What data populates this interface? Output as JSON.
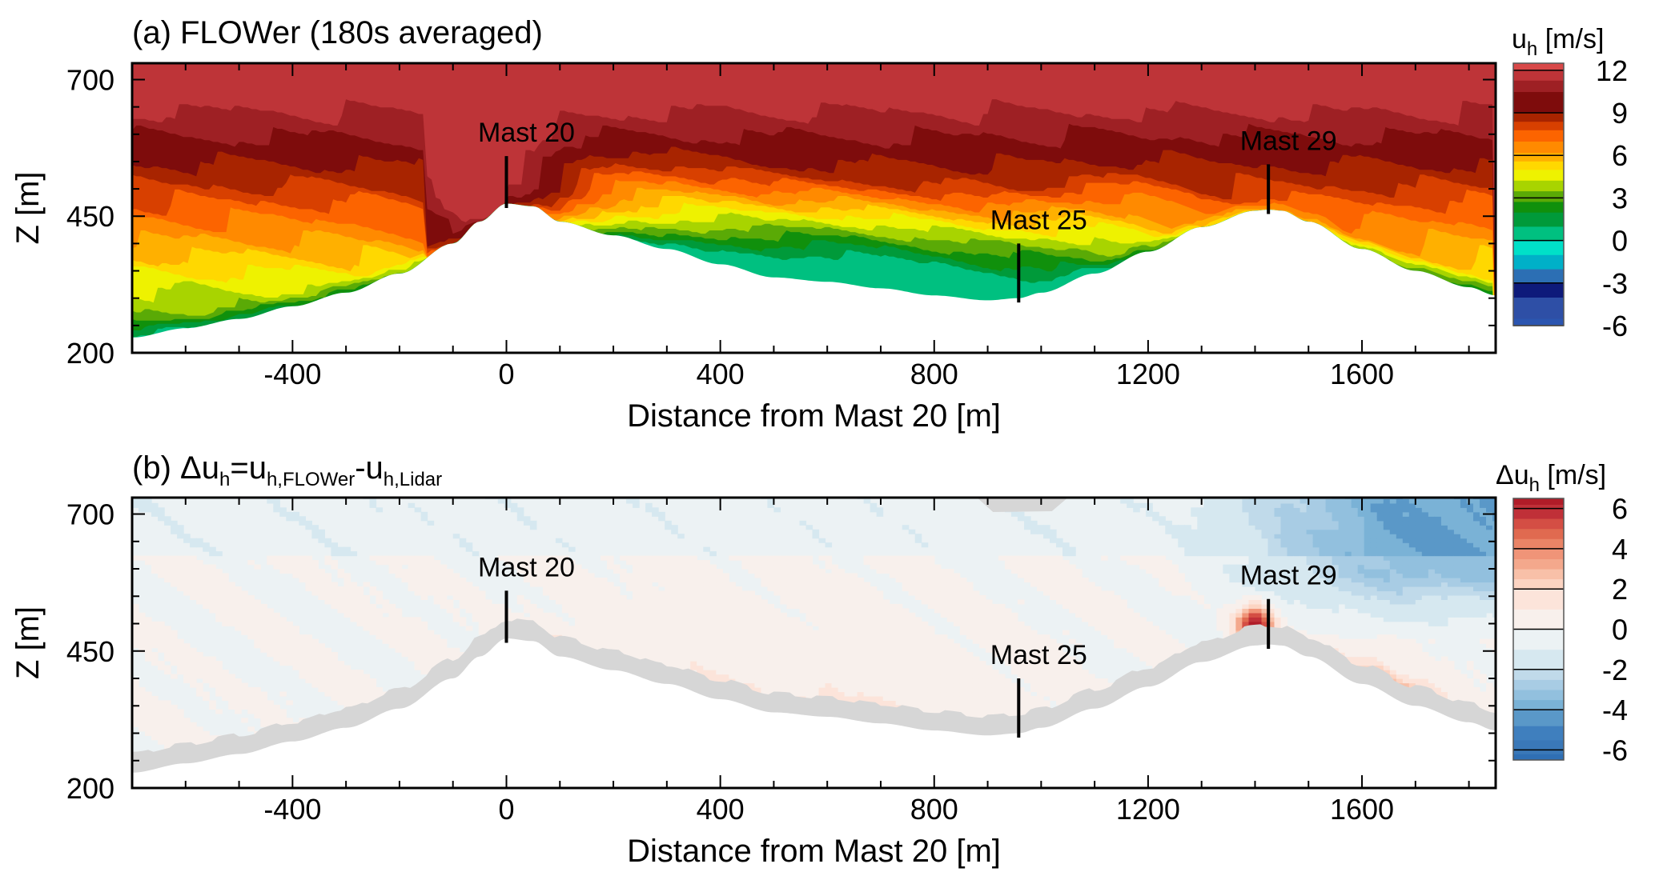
{
  "figure": {
    "panels": [
      {
        "id": "a",
        "title_parts": [
          {
            "text": "(a) FLOWer (180s averaged)",
            "sub": false
          }
        ],
        "colorbar": {
          "label_main": "u",
          "label_sub": "h",
          "label_unit": " [m/s]",
          "range": [
            -6,
            12.5
          ],
          "ticks": [
            "12",
            "9",
            "6",
            "3",
            "0",
            "-3",
            "-6"
          ],
          "tick_values": [
            12,
            9,
            6,
            3,
            0,
            -3,
            -6
          ],
          "levels": [
            {
              "from": -6.0,
              "to": -5.5,
              "color": "#2b55b0"
            },
            {
              "from": -5.5,
              "to": -4.0,
              "color": "#2e4fa6"
            },
            {
              "from": -4.0,
              "to": -3.0,
              "color": "#0e1a7a"
            },
            {
              "from": -3.0,
              "to": -2.0,
              "color": "#2c6fb4"
            },
            {
              "from": -2.0,
              "to": -1.0,
              "color": "#00b0c8"
            },
            {
              "from": -1.0,
              "to": 0.0,
              "color": "#00e0c8"
            },
            {
              "from": 0.0,
              "to": 1.0,
              "color": "#00c080"
            },
            {
              "from": 1.0,
              "to": 2.0,
              "color": "#009a3a"
            },
            {
              "from": 2.0,
              "to": 2.75,
              "color": "#10900c"
            },
            {
              "from": 2.75,
              "to": 3.5,
              "color": "#5aaa06"
            },
            {
              "from": 3.5,
              "to": 4.25,
              "color": "#a8d400"
            },
            {
              "from": 4.25,
              "to": 5.0,
              "color": "#eef200"
            },
            {
              "from": 5.0,
              "to": 5.6,
              "color": "#ffd800"
            },
            {
              "from": 5.6,
              "to": 6.2,
              "color": "#ffb000"
            },
            {
              "from": 6.2,
              "to": 7.0,
              "color": "#ff8a00"
            },
            {
              "from": 7.0,
              "to": 7.8,
              "color": "#fc6400"
            },
            {
              "from": 7.8,
              "to": 8.4,
              "color": "#d84000"
            },
            {
              "from": 8.4,
              "to": 9.0,
              "color": "#a82400"
            },
            {
              "from": 9.0,
              "to": 10.5,
              "color": "#7e0c0c"
            },
            {
              "from": 10.5,
              "to": 11.3,
              "color": "#9e2024"
            },
            {
              "from": 11.3,
              "to": 12.0,
              "color": "#be3438"
            },
            {
              "from": 12.0,
              "to": 12.5,
              "color": "#d84848"
            }
          ]
        },
        "field_bands": [
          {
            "value": 0.5,
            "color": "#00c080"
          },
          {
            "value": 1.5,
            "color": "#009a3a"
          },
          {
            "value": 2.4,
            "color": "#10900c"
          },
          {
            "value": 3.1,
            "color": "#5aaa06"
          },
          {
            "value": 3.9,
            "color": "#a8d400"
          },
          {
            "value": 4.6,
            "color": "#eef200"
          },
          {
            "value": 5.3,
            "color": "#ffd800"
          },
          {
            "value": 5.9,
            "color": "#ffb000"
          },
          {
            "value": 6.6,
            "color": "#ff8a00"
          },
          {
            "value": 7.4,
            "color": "#fc6400"
          },
          {
            "value": 8.1,
            "color": "#d84000"
          },
          {
            "value": 8.7,
            "color": "#a82400"
          },
          {
            "value": 9.8,
            "color": "#7e0c0c"
          },
          {
            "value": 10.9,
            "color": "#9e2024"
          },
          {
            "value": 11.7,
            "color": "#be3438"
          }
        ],
        "terrain_fill": "#ffffff",
        "terrain_gap_fill": null
      },
      {
        "id": "b",
        "title_parts": [
          {
            "text": "(b) Δu",
            "sub": false
          },
          {
            "text": "h",
            "sub": true
          },
          {
            "text": "=u",
            "sub": false
          },
          {
            "text": "h,FLOWer",
            "sub": true
          },
          {
            "text": "-u",
            "sub": false
          },
          {
            "text": "h,Lidar",
            "sub": true
          }
        ],
        "colorbar": {
          "label_main": "Δu",
          "label_sub": "h",
          "label_unit": " [m/s]",
          "range": [
            -6.5,
            6.5
          ],
          "ticks": [
            "6",
            "4",
            "2",
            "0",
            "-2",
            "-4",
            "-6"
          ],
          "tick_values": [
            6,
            4,
            2,
            0,
            -2,
            -4,
            -6
          ],
          "levels": [
            {
              "from": -6.5,
              "to": -6.2,
              "color": "#2f6fb4"
            },
            {
              "from": -6.2,
              "to": -5.5,
              "color": "#3a78b8"
            },
            {
              "from": -5.5,
              "to": -4.8,
              "color": "#3f7fbe"
            },
            {
              "from": -4.8,
              "to": -4.0,
              "color": "#5a98c8"
            },
            {
              "from": -4.0,
              "to": -3.5,
              "color": "#7ab2d6"
            },
            {
              "from": -3.5,
              "to": -3.0,
              "color": "#92c0de"
            },
            {
              "from": -3.0,
              "to": -2.5,
              "color": "#a8cce4"
            },
            {
              "from": -2.5,
              "to": -2.0,
              "color": "#c0daea"
            },
            {
              "from": -2.0,
              "to": -1.0,
              "color": "#d6e8f0"
            },
            {
              "from": -1.0,
              "to": 0.0,
              "color": "#ecf2f4"
            },
            {
              "from": 0.0,
              "to": 1.0,
              "color": "#f8f0ec"
            },
            {
              "from": 1.0,
              "to": 2.0,
              "color": "#fce4da"
            },
            {
              "from": 2.0,
              "to": 2.5,
              "color": "#fcd4c2"
            },
            {
              "from": 2.5,
              "to": 3.0,
              "color": "#f8c0a8"
            },
            {
              "from": 3.0,
              "to": 3.5,
              "color": "#f4a88c"
            },
            {
              "from": 3.5,
              "to": 4.0,
              "color": "#f09478"
            },
            {
              "from": 4.0,
              "to": 4.5,
              "color": "#ea8466"
            },
            {
              "from": 4.5,
              "to": 5.0,
              "color": "#e06a50"
            },
            {
              "from": 5.0,
              "to": 5.5,
              "color": "#d44e44"
            },
            {
              "from": 5.5,
              "to": 6.2,
              "color": "#c03038"
            },
            {
              "from": 6.2,
              "to": 6.5,
              "color": "#b01c28"
            }
          ]
        },
        "terrain_fill": "#ffffff",
        "terrain_gap_fill": "#d6d6d6"
      }
    ],
    "x_axis": {
      "label": "Distance from Mast 20 [m]",
      "range": [
        -700,
        1850
      ],
      "major_ticks": [
        -400,
        0,
        400,
        800,
        1200,
        1600
      ],
      "major_tick_labels": [
        "-400",
        "0",
        "400",
        "800",
        "1200",
        "1600"
      ],
      "minor_step": 100
    },
    "y_axis": {
      "label": "Z [m]",
      "range": [
        200,
        730
      ],
      "major_ticks": [
        200,
        450,
        700
      ],
      "major_tick_labels": [
        "200",
        "450",
        "700"
      ],
      "minor_step": 50
    },
    "masts": [
      {
        "name": "Mast 20",
        "x": 0,
        "ground_z": 473,
        "top_z": 560
      },
      {
        "name": "Mast 25",
        "x": 958,
        "ground_z": 300,
        "top_z": 400
      },
      {
        "name": "Mast 29",
        "x": 1425,
        "ground_z": 462,
        "top_z": 545
      }
    ]
  },
  "chart_data": [
    {
      "type": "heatmap",
      "title": "(a) FLOWer (180s averaged)",
      "xlabel": "Distance from Mast 20 [m]",
      "ylabel": "Z [m]",
      "xlim": [
        -700,
        1850
      ],
      "ylim": [
        200,
        730
      ],
      "x_ticks": [
        -400,
        0,
        400,
        800,
        1200,
        1600
      ],
      "y_ticks": [
        200,
        450,
        700
      ],
      "colorbar_label": "u_h [m/s]",
      "colorbar_ticks": [
        12,
        9,
        6,
        3,
        0,
        -3,
        -6
      ],
      "colorbar_range": [
        -6,
        12.5
      ],
      "annotations": [
        "Mast 20",
        "Mast 25",
        "Mast 29"
      ],
      "terrain_profile": {
        "x": [
          -700,
          -600,
          -500,
          -400,
          -300,
          -200,
          -100,
          -50,
          0,
          50,
          100,
          200,
          300,
          400,
          500,
          600,
          700,
          800,
          900,
          958,
          1000,
          1100,
          1200,
          1300,
          1400,
          1425,
          1450,
          1500,
          1600,
          1700,
          1800,
          1850
        ],
        "z": [
          228,
          245,
          262,
          285,
          310,
          345,
          400,
          440,
          473,
          468,
          440,
          415,
          390,
          362,
          338,
          330,
          318,
          305,
          296,
          300,
          310,
          345,
          385,
          430,
          460,
          462,
          460,
          440,
          390,
          350,
          320,
          305
        ]
      },
      "field_description": "horizontal wind speed; ~9-12 m/s aloft above ~550 m, decreasing toward terrain; 0-3 m/s recirculation in the valley between Mast 20 and Mast 29; 6-8 m/s near Mast 29 hilltop"
    },
    {
      "type": "heatmap",
      "title": "(b) Δu_h = u_h,FLOWer - u_h,Lidar",
      "xlabel": "Distance from Mast 20 [m]",
      "ylabel": "Z [m]",
      "xlim": [
        -700,
        1850
      ],
      "ylim": [
        200,
        730
      ],
      "x_ticks": [
        -400,
        0,
        400,
        800,
        1200,
        1600
      ],
      "y_ticks": [
        200,
        450,
        700
      ],
      "colorbar_label": "Δu_h [m/s]",
      "colorbar_ticks": [
        6,
        4,
        2,
        0,
        -2,
        -4,
        -6
      ],
      "colorbar_range": [
        -6.5,
        6.5
      ],
      "annotations": [
        "Mast 20",
        "Mast 25",
        "Mast 29"
      ],
      "field_description": "differences mostly within ±1 m/s; positive 2-6 m/s near terrain downstream of Mast 20 and at Mast 29 hilltop (up to ~6); negative -2 to -4 m/s aloft beyond x≈1500 m; grey band marks lidar-uncovered region above terrain"
    }
  ]
}
